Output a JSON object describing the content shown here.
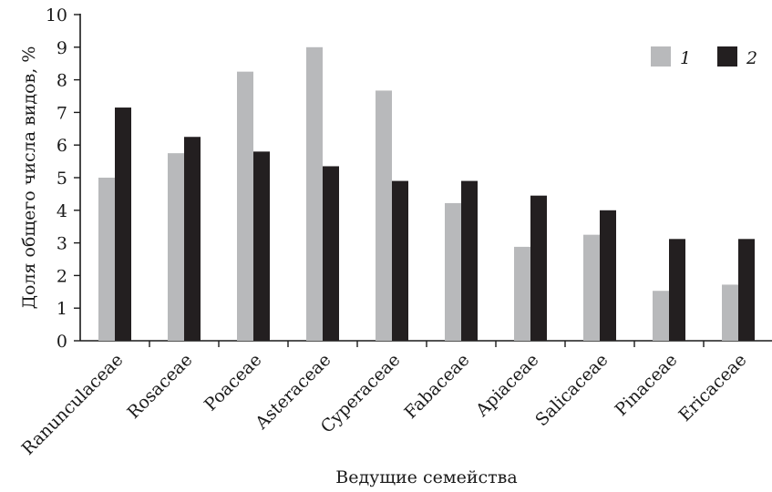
{
  "chart_data": {
    "type": "bar",
    "title": "",
    "xlabel": "Ведущие семейства",
    "ylabel": "Доля общего числа видов, %",
    "ylim": [
      0,
      10
    ],
    "yticks": [
      "0",
      "1",
      "2",
      "3",
      "4",
      "5",
      "6",
      "7",
      "8",
      "9",
      "10"
    ],
    "grid": false,
    "legend_position": "top-right",
    "categories": [
      "Ranunculaceae",
      "Rosaceae",
      "Poaceae",
      "Asteraceae",
      "Cyperaceae",
      "Fabaceae",
      "Apiaceae",
      "Salicaceae",
      "Pinaceae",
      "Ericaceae"
    ],
    "series": [
      {
        "name": "1",
        "color": "#b8b9bb",
        "values": [
          5.0,
          5.75,
          8.25,
          9.0,
          7.67,
          4.22,
          2.88,
          3.25,
          1.53,
          1.72
        ]
      },
      {
        "name": "2",
        "color": "#231f20",
        "values": [
          7.15,
          6.25,
          5.8,
          5.35,
          4.9,
          4.9,
          4.45,
          4.0,
          3.12,
          3.12
        ]
      }
    ]
  }
}
